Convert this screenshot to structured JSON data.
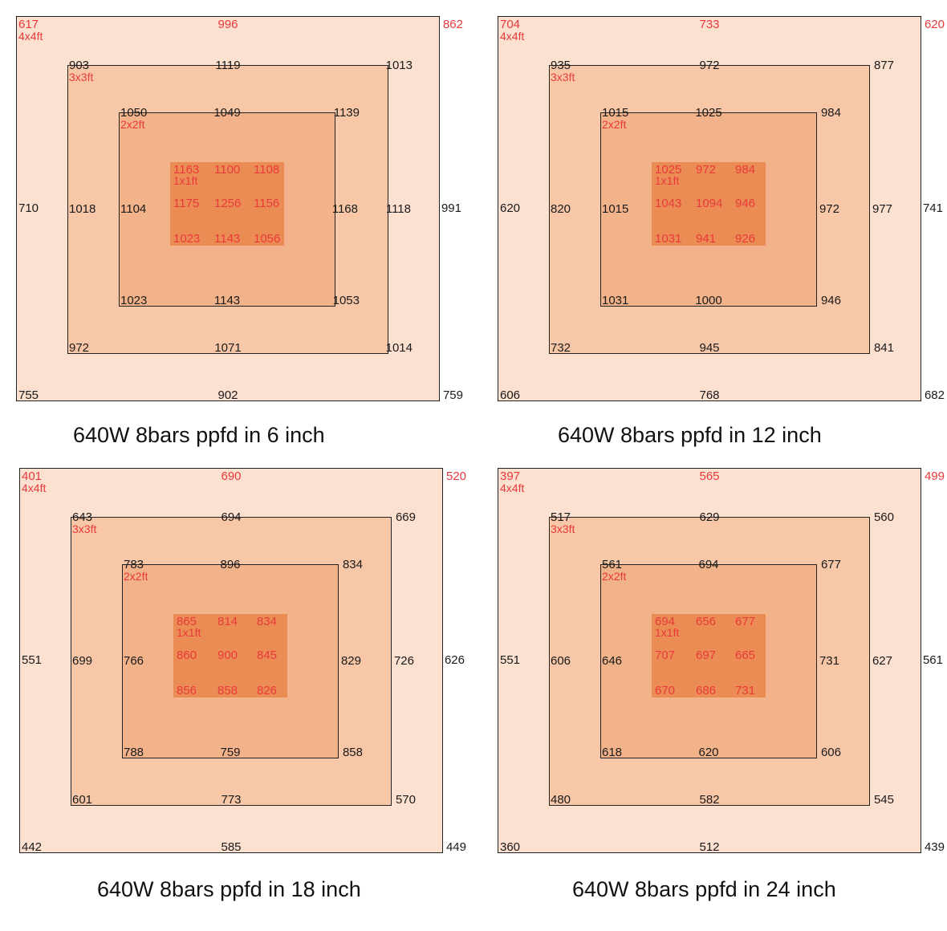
{
  "zone_labels": {
    "z4": "4x4ft",
    "z3": "3x3ft",
    "z2": "2x2ft",
    "z1": "1x1ft"
  },
  "colors": {
    "z4": "#fce0d0",
    "z3": "#f7c7a8",
    "z2": "#f2b28a",
    "z1": "#ec8c55",
    "red_text": "#e8393a"
  },
  "panels": [
    {
      "caption": "640W 8bars ppfd in 6 inch",
      "z4": {
        "tl": "617",
        "tc": "996",
        "tr": "862",
        "ml": "710",
        "mr": "991",
        "bl": "755",
        "bc": "902",
        "br": "759"
      },
      "z3": {
        "tl": "903",
        "tc": "1119",
        "tr": "1013",
        "ml": "1018",
        "mr": "1118",
        "bl": "972",
        "bc": "1071",
        "br": "1014"
      },
      "z2": {
        "tl": "1050",
        "tc": "1049",
        "tr": "1139",
        "ml": "1104",
        "mr": "1168",
        "bl": "1023",
        "bc": "1143",
        "br": "1053"
      },
      "z1": {
        "tl": "1163",
        "tc": "1100",
        "tr": "1108",
        "ml": "1175",
        "mc": "1256",
        "mr": "1156",
        "bl": "1023",
        "bc": "1143",
        "br": "1056"
      }
    },
    {
      "caption": "640W 8bars ppfd in 12 inch",
      "z4": {
        "tl": "704",
        "tc": "733",
        "tr": "620",
        "ml": "620",
        "mr": "741",
        "bl": "606",
        "bc": "768",
        "br": "682"
      },
      "z3": {
        "tl": "935",
        "tc": "972",
        "tr": "877",
        "ml": "820",
        "mr": "977",
        "bl": "732",
        "bc": "945",
        "br": "841"
      },
      "z2": {
        "tl": "1015",
        "tc": "1025",
        "tr": "984",
        "ml": "1015",
        "mr": "972",
        "bl": "1031",
        "bc": "1000",
        "br": "946"
      },
      "z1": {
        "tl": "1025",
        "tc": "972",
        "tr": "984",
        "ml": "1043",
        "mc": "1094",
        "mr": "946",
        "bl": "1031",
        "bc": "941",
        "br": "926"
      }
    },
    {
      "caption": "640W 8bars ppfd in 18 inch",
      "z4": {
        "tl": "401",
        "tc": "690",
        "tr": "520",
        "ml": "551",
        "mr": "626",
        "bl": "442",
        "bc": "585",
        "br": "449"
      },
      "z3": {
        "tl": "643",
        "tc": "694",
        "tr": "669",
        "ml": "699",
        "mr": "726",
        "bl": "601",
        "bc": "773",
        "br": "570"
      },
      "z2": {
        "tl": "783",
        "tc": "896",
        "tr": "834",
        "ml": "766",
        "mr": "829",
        "bl": "788",
        "bc": "759",
        "br": "858"
      },
      "z1": {
        "tl": "865",
        "tc": "814",
        "tr": "834",
        "ml": "860",
        "mc": "900",
        "mr": "845",
        "bl": "856",
        "bc": "858",
        "br": "826"
      }
    },
    {
      "caption": "640W 8bars ppfd in 24 inch",
      "z4": {
        "tl": "397",
        "tc": "565",
        "tr": "499",
        "ml": "551",
        "mr": "561",
        "bl": "360",
        "bc": "512",
        "br": "439"
      },
      "z3": {
        "tl": "517",
        "tc": "629",
        "tr": "560",
        "ml": "606",
        "mr": "627",
        "bl": "480",
        "bc": "582",
        "br": "545"
      },
      "z2": {
        "tl": "561",
        "tc": "694",
        "tr": "677",
        "ml": "646",
        "mr": "731",
        "bl": "618",
        "bc": "620",
        "br": "606"
      },
      "z1": {
        "tl": "694",
        "tc": "656",
        "tr": "677",
        "ml": "707",
        "mc": "697",
        "mr": "665",
        "bl": "670",
        "bc": "686",
        "br": "731"
      }
    }
  ]
}
